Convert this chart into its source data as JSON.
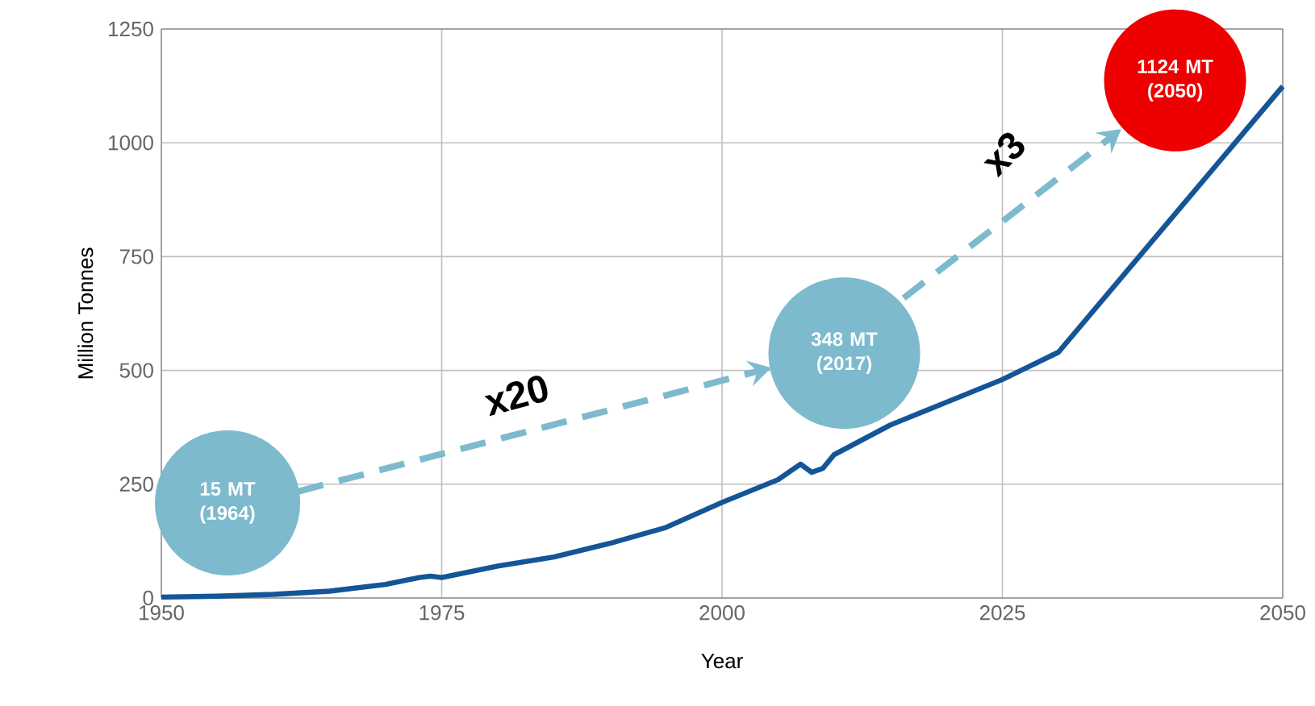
{
  "chart_data": {
    "type": "line",
    "xlabel": "Year",
    "ylabel": "Million Tonnes",
    "xlim": [
      1950,
      2050
    ],
    "ylim": [
      0,
      1250
    ],
    "xticks": [
      1950,
      1975,
      2000,
      2025,
      2050
    ],
    "yticks": [
      0,
      250,
      500,
      750,
      1000,
      1250
    ],
    "grid": true,
    "series": [
      {
        "color": "#135597",
        "x": [
          1950,
          1955,
          1960,
          1965,
          1970,
          1973,
          1974,
          1975,
          1980,
          1985,
          1990,
          1995,
          2000,
          2005,
          2007,
          2008,
          2009,
          2010,
          2015,
          2020,
          2025,
          2030,
          2050
        ],
        "values": [
          2,
          4,
          8,
          15,
          30,
          45,
          48,
          45,
          70,
          90,
          120,
          155,
          210,
          260,
          294,
          276,
          285,
          315,
          380,
          430,
          480,
          540,
          1124
        ]
      }
    ],
    "annotations": [
      "15 MT (1964)",
      "348 MT (2017)",
      "1124 MT (2050)",
      "x20",
      "x3"
    ]
  }
}
